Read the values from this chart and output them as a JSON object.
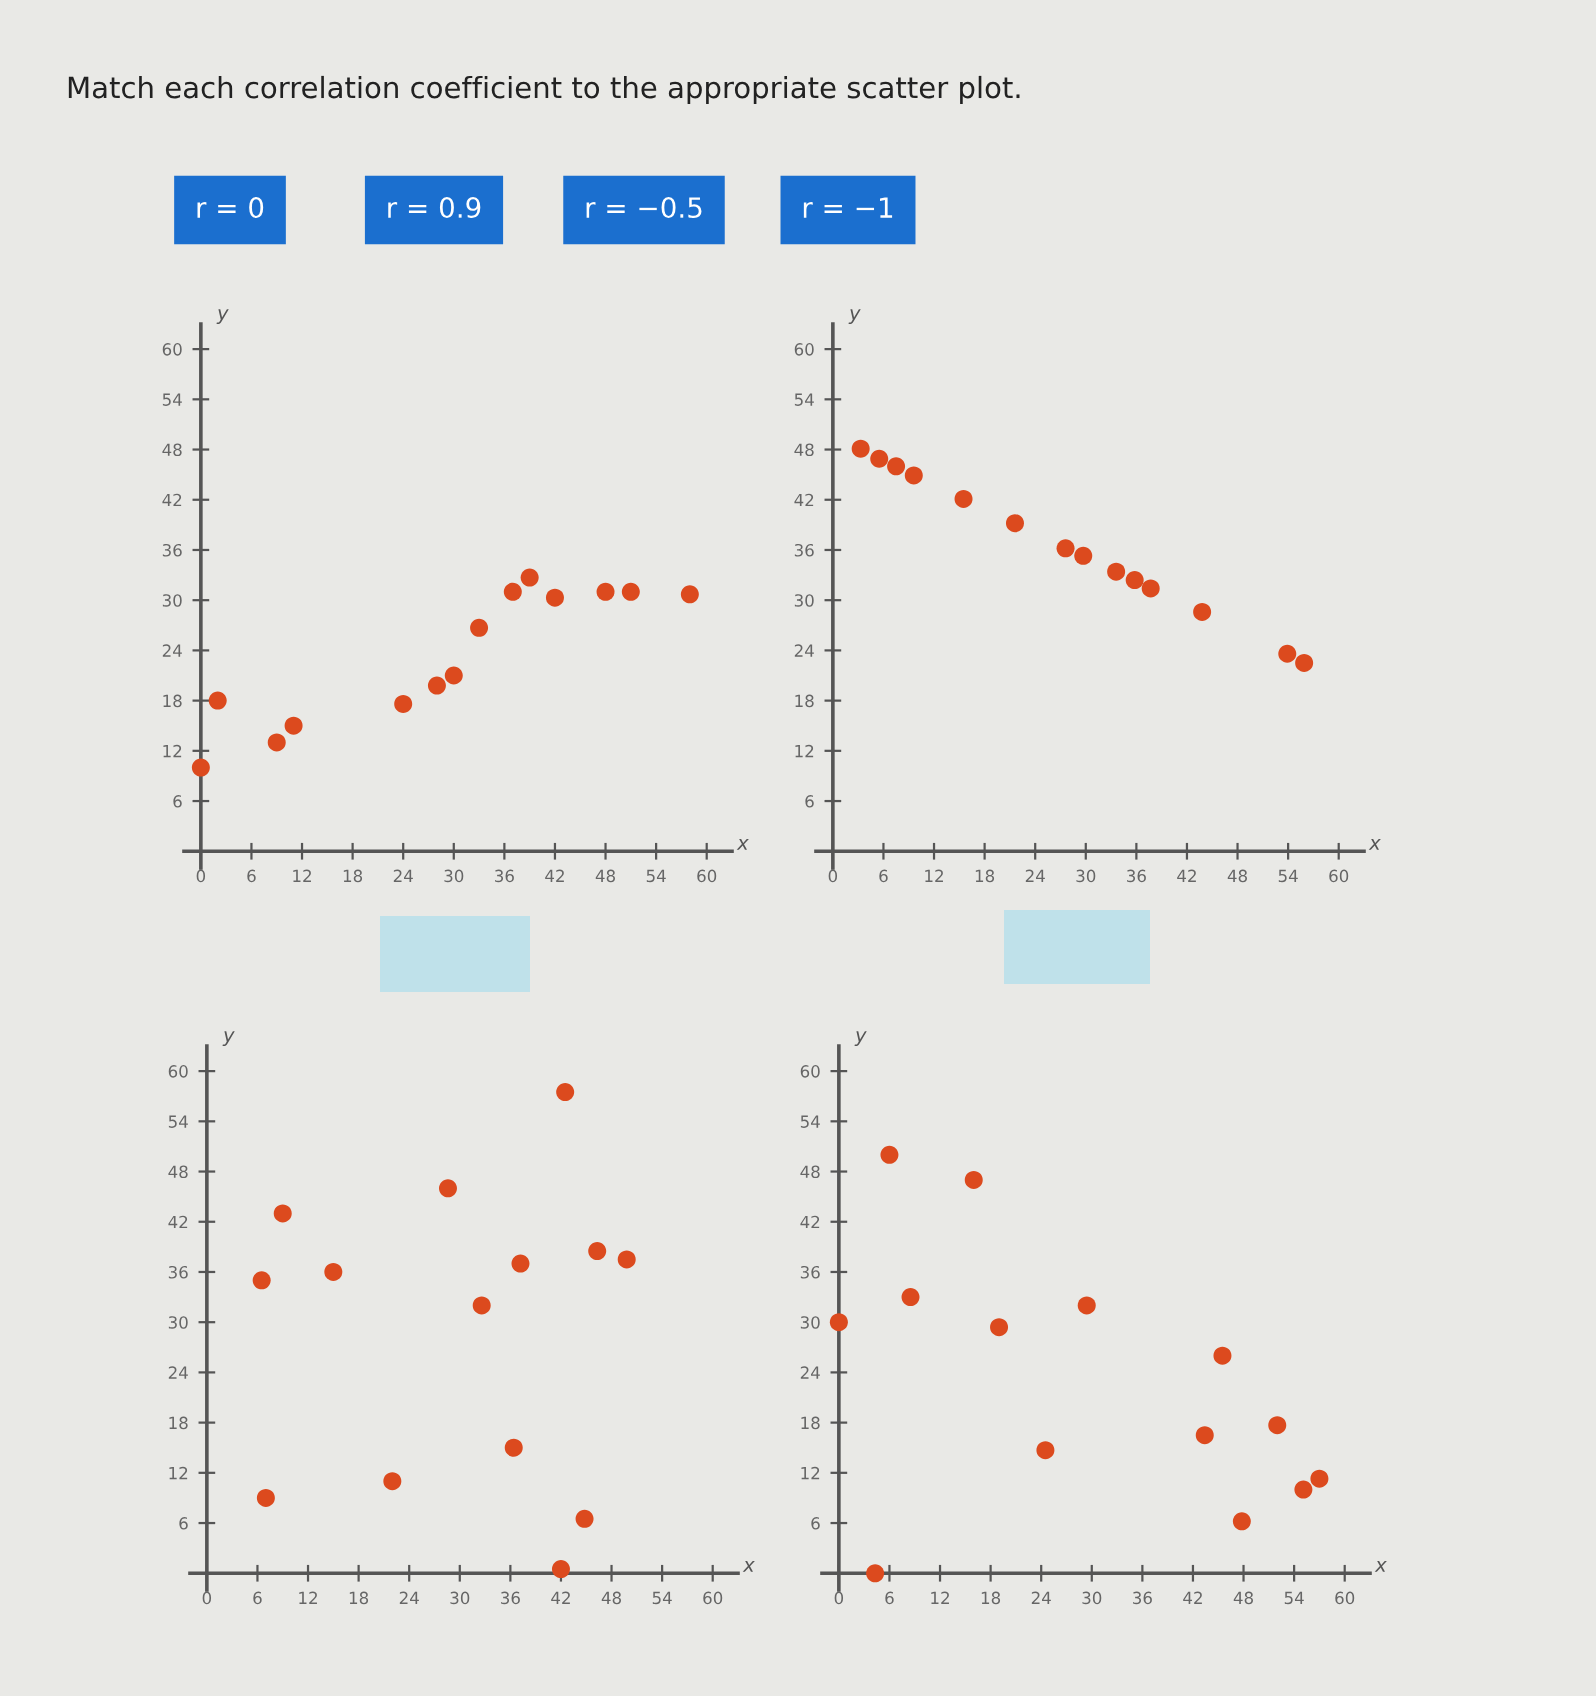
{
  "chart_data": [
    {
      "type": "other",
      "title": "Match each correlation coefficient to the appropriate scatter plot.",
      "annotations": [
        "r = 0",
        "r = 0.9",
        "r = −0.5",
        "r = −1"
      ]
    },
    {
      "type": "scatter",
      "xlabel": "x",
      "ylabel": "y",
      "xlim": [
        -2,
        63
      ],
      "ylim": [
        -2,
        63
      ],
      "xticks": [
        0,
        6,
        12,
        18,
        24,
        30,
        36,
        42,
        48,
        54,
        60
      ],
      "yticks": [
        6,
        12,
        18,
        24,
        30,
        36,
        42,
        48,
        54,
        60
      ],
      "grid": false,
      "marker": "circle",
      "series": [
        {
          "color": "#dc4a1e",
          "x": [
            0,
            2,
            9,
            11,
            24,
            28,
            30,
            33,
            37,
            39,
            42,
            48,
            51,
            58
          ],
          "values": [
            10,
            18,
            13,
            15,
            17.6,
            19.8,
            21,
            26.7,
            31,
            32.7,
            30.3,
            31,
            31,
            30.7
          ]
        }
      ]
    },
    {
      "type": "scatter",
      "xlabel": "x",
      "ylabel": "y",
      "xlim": [
        -2,
        63
      ],
      "ylim": [
        -2,
        63
      ],
      "xticks": [
        0,
        6,
        12,
        18,
        24,
        30,
        36,
        42,
        48,
        54,
        60
      ],
      "yticks": [
        6,
        12,
        18,
        24,
        30,
        36,
        42,
        48,
        54,
        60
      ],
      "grid": false,
      "marker": "circle",
      "series": [
        {
          "color": "#dc4a1e",
          "x": [
            3.3,
            5.5,
            7.5,
            9.6,
            15.5,
            21.6,
            27.6,
            29.7,
            33.6,
            35.8,
            37.7,
            43.8,
            53.9,
            55.9
          ],
          "values": [
            48.1,
            46.9,
            46,
            44.9,
            42.1,
            39.2,
            36.2,
            35.3,
            33.4,
            32.4,
            31.4,
            28.6,
            23.6,
            22.5
          ]
        }
      ]
    },
    {
      "type": "scatter",
      "xlabel": "x",
      "ylabel": "y",
      "xlim": [
        -2,
        63
      ],
      "ylim": [
        -2,
        63
      ],
      "xticks": [
        0,
        6,
        12,
        18,
        24,
        30,
        36,
        42,
        48,
        54,
        60
      ],
      "yticks": [
        6,
        12,
        18,
        24,
        30,
        36,
        42,
        48,
        54,
        60
      ],
      "grid": false,
      "marker": "circle",
      "series": [
        {
          "color": "#dc4a1e",
          "x": [
            6.5,
            9,
            7,
            15,
            22,
            28.6,
            32.6,
            37.2,
            36.4,
            42.5,
            42,
            46.3,
            49.8,
            44.8
          ],
          "values": [
            35,
            43,
            9,
            36,
            11,
            46,
            32,
            37,
            15,
            57.5,
            0.5,
            38.5,
            37.5,
            6.5
          ]
        }
      ]
    },
    {
      "type": "scatter",
      "xlabel": "x",
      "ylabel": "y",
      "xlim": [
        -2,
        63
      ],
      "ylim": [
        -2,
        63
      ],
      "xticks": [
        0,
        6,
        12,
        18,
        24,
        30,
        36,
        42,
        48,
        54,
        60
      ],
      "yticks": [
        6,
        12,
        18,
        24,
        30,
        36,
        42,
        48,
        54,
        60
      ],
      "grid": false,
      "marker": "circle",
      "series": [
        {
          "color": "#dc4a1e",
          "x": [
            0,
            4.3,
            6,
            8.5,
            16,
            19,
            24.5,
            29.4,
            43.4,
            45.5,
            47.8,
            52,
            55.1,
            57
          ],
          "values": [
            30,
            0,
            50,
            33,
            47,
            29.4,
            14.7,
            32,
            16.5,
            26,
            6.2,
            17.7,
            10,
            11.3
          ]
        }
      ]
    }
  ]
}
